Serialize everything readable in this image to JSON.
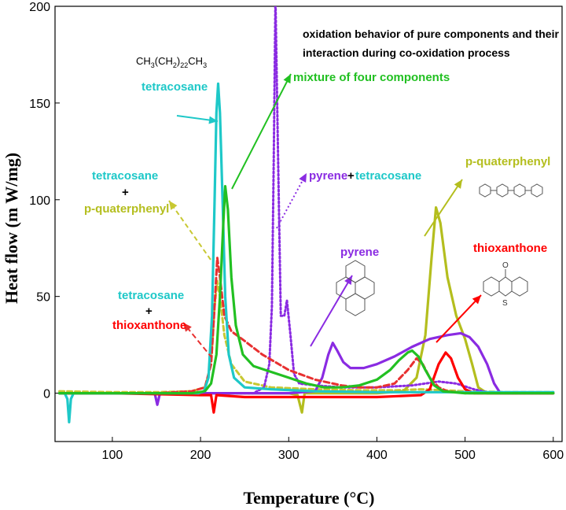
{
  "chart_data": {
    "type": "line",
    "title": "",
    "annotation": [
      "oxidation behavior of pure components and their",
      "interaction during co-oxidation process"
    ],
    "xlabel": "Temperature (°C)",
    "ylabel": "Heat flow (m W/mg)",
    "xlim": [
      35,
      610
    ],
    "ylim": [
      -25,
      200
    ],
    "x_ticks": [
      100,
      200,
      300,
      400,
      500,
      600
    ],
    "y_ticks": [
      0,
      50,
      100,
      150,
      200
    ],
    "grid": false,
    "legend": "none",
    "formula": {
      "base": "CH3(CH2)22CH3",
      "parts": [
        "CH",
        "3",
        "(CH",
        "2",
        ")",
        "22",
        "CH",
        "3"
      ]
    },
    "labels": {
      "tetracosane": "tetracosane",
      "mixture": "mixture of four components",
      "pyrene_tetracosane": {
        "a": "pyrene",
        "plus": "+",
        "b": "tetracosane"
      },
      "tetracosane_quaterphenyl": {
        "a": "tetracosane",
        "plus": "+",
        "b": "p-quaterphenyl"
      },
      "tetracosane_thioxanthone": {
        "a": "tetracosane",
        "plus": "+",
        "b": "thioxanthone"
      },
      "pyrene": "pyrene",
      "p_quaterphenyl": "p-quaterphenyl",
      "thioxanthone": "thioxanthone",
      "thio_o": "O",
      "thio_s": "S"
    },
    "series": [
      {
        "key": "tetracosane_quaterphenyl",
        "color": "#c8c832",
        "dash": "6,4",
        "points": [
          [
            40,
            1
          ],
          [
            100,
            0.5
          ],
          [
            150,
            0.5
          ],
          [
            190,
            1
          ],
          [
            205,
            3
          ],
          [
            212,
            15
          ],
          [
            216,
            45
          ],
          [
            219,
            58
          ],
          [
            222,
            50
          ],
          [
            227,
            30
          ],
          [
            235,
            15
          ],
          [
            250,
            6
          ],
          [
            280,
            3
          ],
          [
            330,
            2
          ],
          [
            380,
            1.5
          ],
          [
            420,
            1.5
          ],
          [
            450,
            2
          ],
          [
            500,
            1
          ],
          [
            550,
            0.5
          ],
          [
            600,
            0.5
          ]
        ]
      },
      {
        "key": "p_quaterphenyl",
        "color": "#b4be1e",
        "dash": "",
        "points": [
          [
            40,
            0
          ],
          [
            100,
            0
          ],
          [
            200,
            0
          ],
          [
            300,
            0
          ],
          [
            310,
            -1
          ],
          [
            315,
            -10
          ],
          [
            318,
            0
          ],
          [
            350,
            0
          ],
          [
            400,
            0
          ],
          [
            430,
            1
          ],
          [
            445,
            8
          ],
          [
            455,
            30
          ],
          [
            462,
            70
          ],
          [
            467,
            96
          ],
          [
            472,
            88
          ],
          [
            480,
            60
          ],
          [
            490,
            40
          ],
          [
            500,
            28
          ],
          [
            508,
            15
          ],
          [
            515,
            3
          ],
          [
            525,
            0
          ],
          [
            550,
            0
          ],
          [
            600,
            0
          ]
        ]
      },
      {
        "key": "pyrene",
        "color": "#8a2be2",
        "dash": "",
        "points": [
          [
            40,
            0
          ],
          [
            100,
            0
          ],
          [
            148,
            0
          ],
          [
            151,
            -6
          ],
          [
            154,
            0
          ],
          [
            200,
            0
          ],
          [
            300,
            0
          ],
          [
            330,
            1
          ],
          [
            338,
            8
          ],
          [
            345,
            20
          ],
          [
            350,
            26
          ],
          [
            355,
            22
          ],
          [
            362,
            16
          ],
          [
            370,
            13
          ],
          [
            385,
            13
          ],
          [
            400,
            15
          ],
          [
            420,
            19
          ],
          [
            440,
            24
          ],
          [
            460,
            28
          ],
          [
            480,
            30
          ],
          [
            495,
            31
          ],
          [
            505,
            29
          ],
          [
            515,
            24
          ],
          [
            525,
            15
          ],
          [
            533,
            5
          ],
          [
            540,
            0
          ],
          [
            560,
            0
          ],
          [
            600,
            0
          ]
        ]
      },
      {
        "key": "pyrene_tetracosane",
        "color": "#8a2be2",
        "dash": "2,3",
        "points": [
          [
            40,
            0
          ],
          [
            100,
            0
          ],
          [
            200,
            0
          ],
          [
            260,
            0
          ],
          [
            272,
            3
          ],
          [
            278,
            15
          ],
          [
            281,
            45
          ],
          [
            283,
            120
          ],
          [
            285,
            205
          ],
          [
            288,
            120
          ],
          [
            291,
            40
          ],
          [
            295,
            40
          ],
          [
            298,
            48
          ],
          [
            302,
            30
          ],
          [
            306,
            10
          ],
          [
            312,
            5
          ],
          [
            330,
            4
          ],
          [
            360,
            3
          ],
          [
            400,
            3
          ],
          [
            440,
            4
          ],
          [
            470,
            6
          ],
          [
            490,
            5
          ],
          [
            510,
            2
          ],
          [
            530,
            0
          ],
          [
            560,
            0
          ],
          [
            600,
            0
          ]
        ]
      },
      {
        "key": "thioxanthone",
        "color": "#ff0000",
        "dash": "",
        "points": [
          [
            40,
            0
          ],
          [
            100,
            0
          ],
          [
            200,
            -1
          ],
          [
            212,
            -1
          ],
          [
            215,
            -10
          ],
          [
            218,
            -1
          ],
          [
            250,
            -2
          ],
          [
            300,
            -2
          ],
          [
            350,
            -2
          ],
          [
            400,
            -2
          ],
          [
            450,
            -1
          ],
          [
            460,
            2
          ],
          [
            470,
            15
          ],
          [
            478,
            21
          ],
          [
            484,
            18
          ],
          [
            492,
            8
          ],
          [
            500,
            2
          ],
          [
            510,
            0
          ],
          [
            550,
            0
          ],
          [
            600,
            0
          ]
        ]
      },
      {
        "key": "tetracosane_thioxanthone",
        "color": "#e83030",
        "dash": "7,4",
        "points": [
          [
            40,
            0
          ],
          [
            100,
            0
          ],
          [
            150,
            0
          ],
          [
            190,
            1
          ],
          [
            205,
            3
          ],
          [
            212,
            15
          ],
          [
            216,
            45
          ],
          [
            219,
            70
          ],
          [
            222,
            60
          ],
          [
            227,
            40
          ],
          [
            235,
            32
          ],
          [
            250,
            27
          ],
          [
            270,
            20
          ],
          [
            300,
            12
          ],
          [
            330,
            7
          ],
          [
            360,
            4
          ],
          [
            380,
            3
          ],
          [
            400,
            3
          ],
          [
            420,
            5
          ],
          [
            435,
            12
          ],
          [
            445,
            18
          ],
          [
            452,
            15
          ],
          [
            460,
            8
          ],
          [
            470,
            3
          ],
          [
            480,
            1
          ],
          [
            500,
            0
          ],
          [
            550,
            0
          ],
          [
            600,
            0
          ]
        ]
      },
      {
        "key": "tetracosane",
        "color": "#1ec8c8",
        "dash": "",
        "points": [
          [
            40,
            0
          ],
          [
            46,
            0
          ],
          [
            49,
            -3
          ],
          [
            51,
            -15
          ],
          [
            53,
            -3
          ],
          [
            56,
            0
          ],
          [
            100,
            0
          ],
          [
            150,
            0
          ],
          [
            190,
            0
          ],
          [
            198,
            0
          ],
          [
            204,
            1
          ],
          [
            209,
            8
          ],
          [
            213,
            40
          ],
          [
            216,
            100
          ],
          [
            218,
            145
          ],
          [
            220,
            160
          ],
          [
            222,
            145
          ],
          [
            225,
            100
          ],
          [
            228,
            50
          ],
          [
            232,
            20
          ],
          [
            238,
            8
          ],
          [
            250,
            3
          ],
          [
            280,
            2
          ],
          [
            330,
            1
          ],
          [
            400,
            0.5
          ],
          [
            480,
            0.5
          ],
          [
            600,
            0.5
          ]
        ]
      },
      {
        "key": "mixture",
        "color": "#22c022",
        "dash": "",
        "points": [
          [
            40,
            0
          ],
          [
            100,
            0
          ],
          [
            150,
            0
          ],
          [
            190,
            0
          ],
          [
            205,
            1
          ],
          [
            212,
            5
          ],
          [
            218,
            20
          ],
          [
            222,
            50
          ],
          [
            226,
            90
          ],
          [
            228,
            107
          ],
          [
            231,
            95
          ],
          [
            235,
            60
          ],
          [
            240,
            35
          ],
          [
            248,
            20
          ],
          [
            260,
            14
          ],
          [
            280,
            11
          ],
          [
            300,
            8
          ],
          [
            320,
            5
          ],
          [
            340,
            3
          ],
          [
            360,
            3
          ],
          [
            380,
            4
          ],
          [
            400,
            7
          ],
          [
            415,
            12
          ],
          [
            425,
            17
          ],
          [
            435,
            21
          ],
          [
            440,
            22
          ],
          [
            447,
            19
          ],
          [
            455,
            12
          ],
          [
            465,
            4
          ],
          [
            475,
            1
          ],
          [
            500,
            0
          ],
          [
            550,
            0
          ],
          [
            600,
            0
          ]
        ]
      }
    ],
    "arrows": [
      {
        "key": "tetracosane",
        "color": "#1ec8c8",
        "dash": "",
        "from": [
          225,
          147
        ],
        "to": [
          277,
          154
        ]
      },
      {
        "key": "mixture",
        "color": "#22c022",
        "dash": "",
        "from": [
          295,
          240
        ],
        "to": [
          370,
          94
        ]
      },
      {
        "key": "pyrene_tetracosane",
        "color": "#8a2be2",
        "dash": "2,3",
        "from": [
          352,
          290
        ],
        "to": [
          390,
          220
        ]
      },
      {
        "key": "tetracosane_quaterphenyl",
        "color": "#c8c832",
        "dash": "6,4",
        "from": [
          268,
          330
        ],
        "to": [
          215,
          255
        ]
      },
      {
        "key": "tetracosane_thioxanthone",
        "color": "#e83030",
        "dash": "7,4",
        "from": [
          270,
          455
        ],
        "to": [
          233,
          410
        ]
      },
      {
        "key": "pyrene",
        "color": "#8a2be2",
        "dash": "",
        "from": [
          395,
          440
        ],
        "to": [
          448,
          350
        ]
      },
      {
        "key": "p_quaterphenyl",
        "color": "#b4be1e",
        "dash": "",
        "from": [
          540,
          300
        ],
        "to": [
          588,
          228
        ]
      },
      {
        "key": "thioxanthone",
        "color": "#ff0000",
        "dash": "",
        "from": [
          555,
          435
        ],
        "to": [
          612,
          375
        ]
      }
    ]
  }
}
